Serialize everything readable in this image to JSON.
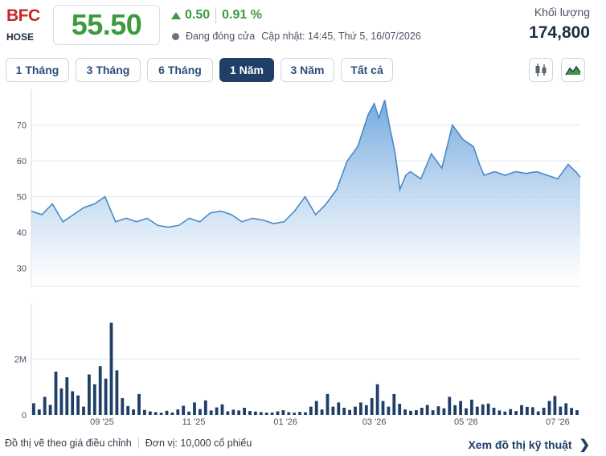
{
  "header": {
    "ticker": "BFC",
    "exchange": "HOSE",
    "price": "55.50",
    "change": "0.50",
    "change_pct": "0.91 %",
    "status": "Đang đóng cửa",
    "updated": "Cập nhật: 14:45, Thứ 5, 16/07/2026",
    "volume_label": "Khối lượng",
    "volume_value": "174,800"
  },
  "colors": {
    "up": "#3e9a3e",
    "ticker": "#c62828",
    "accent": "#1f3f66",
    "line": "#4a89c8",
    "bar": "#1f3f66"
  },
  "tabs": [
    {
      "label": "1 Tháng",
      "active": false
    },
    {
      "label": "3 Tháng",
      "active": false
    },
    {
      "label": "6 Tháng",
      "active": false
    },
    {
      "label": "1 Năm",
      "active": true
    },
    {
      "label": "3 Năm",
      "active": false
    },
    {
      "label": "Tất cả",
      "active": false
    }
  ],
  "tools": {
    "candlestick_icon": "candlestick-icon",
    "area_icon": "mountain-area-icon"
  },
  "footer": {
    "note": "Đồ thị vẽ theo giá điều chỉnh",
    "unit": "Đơn vị: 10,000 cổ phiếu",
    "link": "Xem đồ thị kỹ thuật",
    "link_icon": "chevron-right-icon"
  },
  "chart_data": [
    {
      "type": "area",
      "xlabel": "",
      "ylabel": "",
      "ylim": [
        25,
        80
      ],
      "yticks": [
        30,
        40,
        50,
        60,
        70
      ],
      "xtick_labels": [
        "09 '25",
        "11 '25",
        "01 '26",
        "03 '26",
        "05 '26",
        "07 '26"
      ],
      "grid": true,
      "x": [
        "2025-07-16",
        "2025-07-23",
        "2025-07-30",
        "2025-08-06",
        "2025-08-13",
        "2025-08-20",
        "2025-08-27",
        "2025-09-03",
        "2025-09-10",
        "2025-09-17",
        "2025-09-24",
        "2025-10-01",
        "2025-10-08",
        "2025-10-15",
        "2025-10-22",
        "2025-10-29",
        "2025-11-05",
        "2025-11-12",
        "2025-11-19",
        "2025-11-26",
        "2025-12-03",
        "2025-12-10",
        "2025-12-17",
        "2025-12-24",
        "2025-12-31",
        "2026-01-07",
        "2026-01-14",
        "2026-01-21",
        "2026-01-28",
        "2026-02-04",
        "2026-02-11",
        "2026-02-18",
        "2026-02-25",
        "2026-03-01",
        "2026-03-04",
        "2026-03-08",
        "2026-03-11",
        "2026-03-15",
        "2026-03-18",
        "2026-03-22",
        "2026-03-25",
        "2026-04-01",
        "2026-04-08",
        "2026-04-15",
        "2026-04-22",
        "2026-04-29",
        "2026-05-06",
        "2026-05-10",
        "2026-05-13",
        "2026-05-20",
        "2026-05-27",
        "2026-06-03",
        "2026-06-10",
        "2026-06-17",
        "2026-06-24",
        "2026-07-01",
        "2026-07-08",
        "2026-07-13",
        "2026-07-16"
      ],
      "values": [
        46,
        45,
        48,
        43,
        45,
        47,
        48,
        50,
        43,
        44,
        43,
        44,
        42,
        41.5,
        42,
        44,
        43,
        45.5,
        46,
        45,
        43,
        44,
        43.5,
        42.5,
        43,
        46,
        50,
        45,
        48,
        52,
        60,
        64,
        73,
        76,
        72,
        77,
        70,
        62,
        52,
        56,
        57,
        55,
        62,
        58,
        70,
        66,
        64,
        59,
        56,
        57,
        56,
        57,
        56.5,
        57,
        56,
        55,
        59,
        57,
        55.5
      ]
    },
    {
      "type": "bar",
      "ylabel": "",
      "yticks": [
        0,
        2000000
      ],
      "ytick_labels": [
        "0",
        "2M"
      ],
      "values": [
        420000,
        200000,
        650000,
        360000,
        1550000,
        950000,
        1350000,
        850000,
        700000,
        300000,
        1450000,
        1100000,
        1750000,
        1300000,
        3300000,
        1600000,
        600000,
        320000,
        200000,
        750000,
        180000,
        130000,
        100000,
        80000,
        150000,
        90000,
        200000,
        330000,
        120000,
        450000,
        210000,
        520000,
        160000,
        270000,
        380000,
        130000,
        190000,
        160000,
        260000,
        140000,
        120000,
        100000,
        85000,
        90000,
        130000,
        170000,
        100000,
        80000,
        110000,
        95000,
        300000,
        500000,
        200000,
        750000,
        300000,
        450000,
        260000,
        180000,
        300000,
        450000,
        350000,
        600000,
        1100000,
        500000,
        300000,
        750000,
        400000,
        200000,
        150000,
        170000,
        260000,
        360000,
        170000,
        310000,
        240000,
        650000,
        350000,
        500000,
        240000,
        550000,
        300000,
        380000,
        410000,
        260000,
        160000,
        120000,
        210000,
        140000,
        350000,
        290000,
        280000,
        130000,
        260000,
        500000,
        680000,
        300000,
        420000,
        250000,
        170000
      ]
    }
  ]
}
